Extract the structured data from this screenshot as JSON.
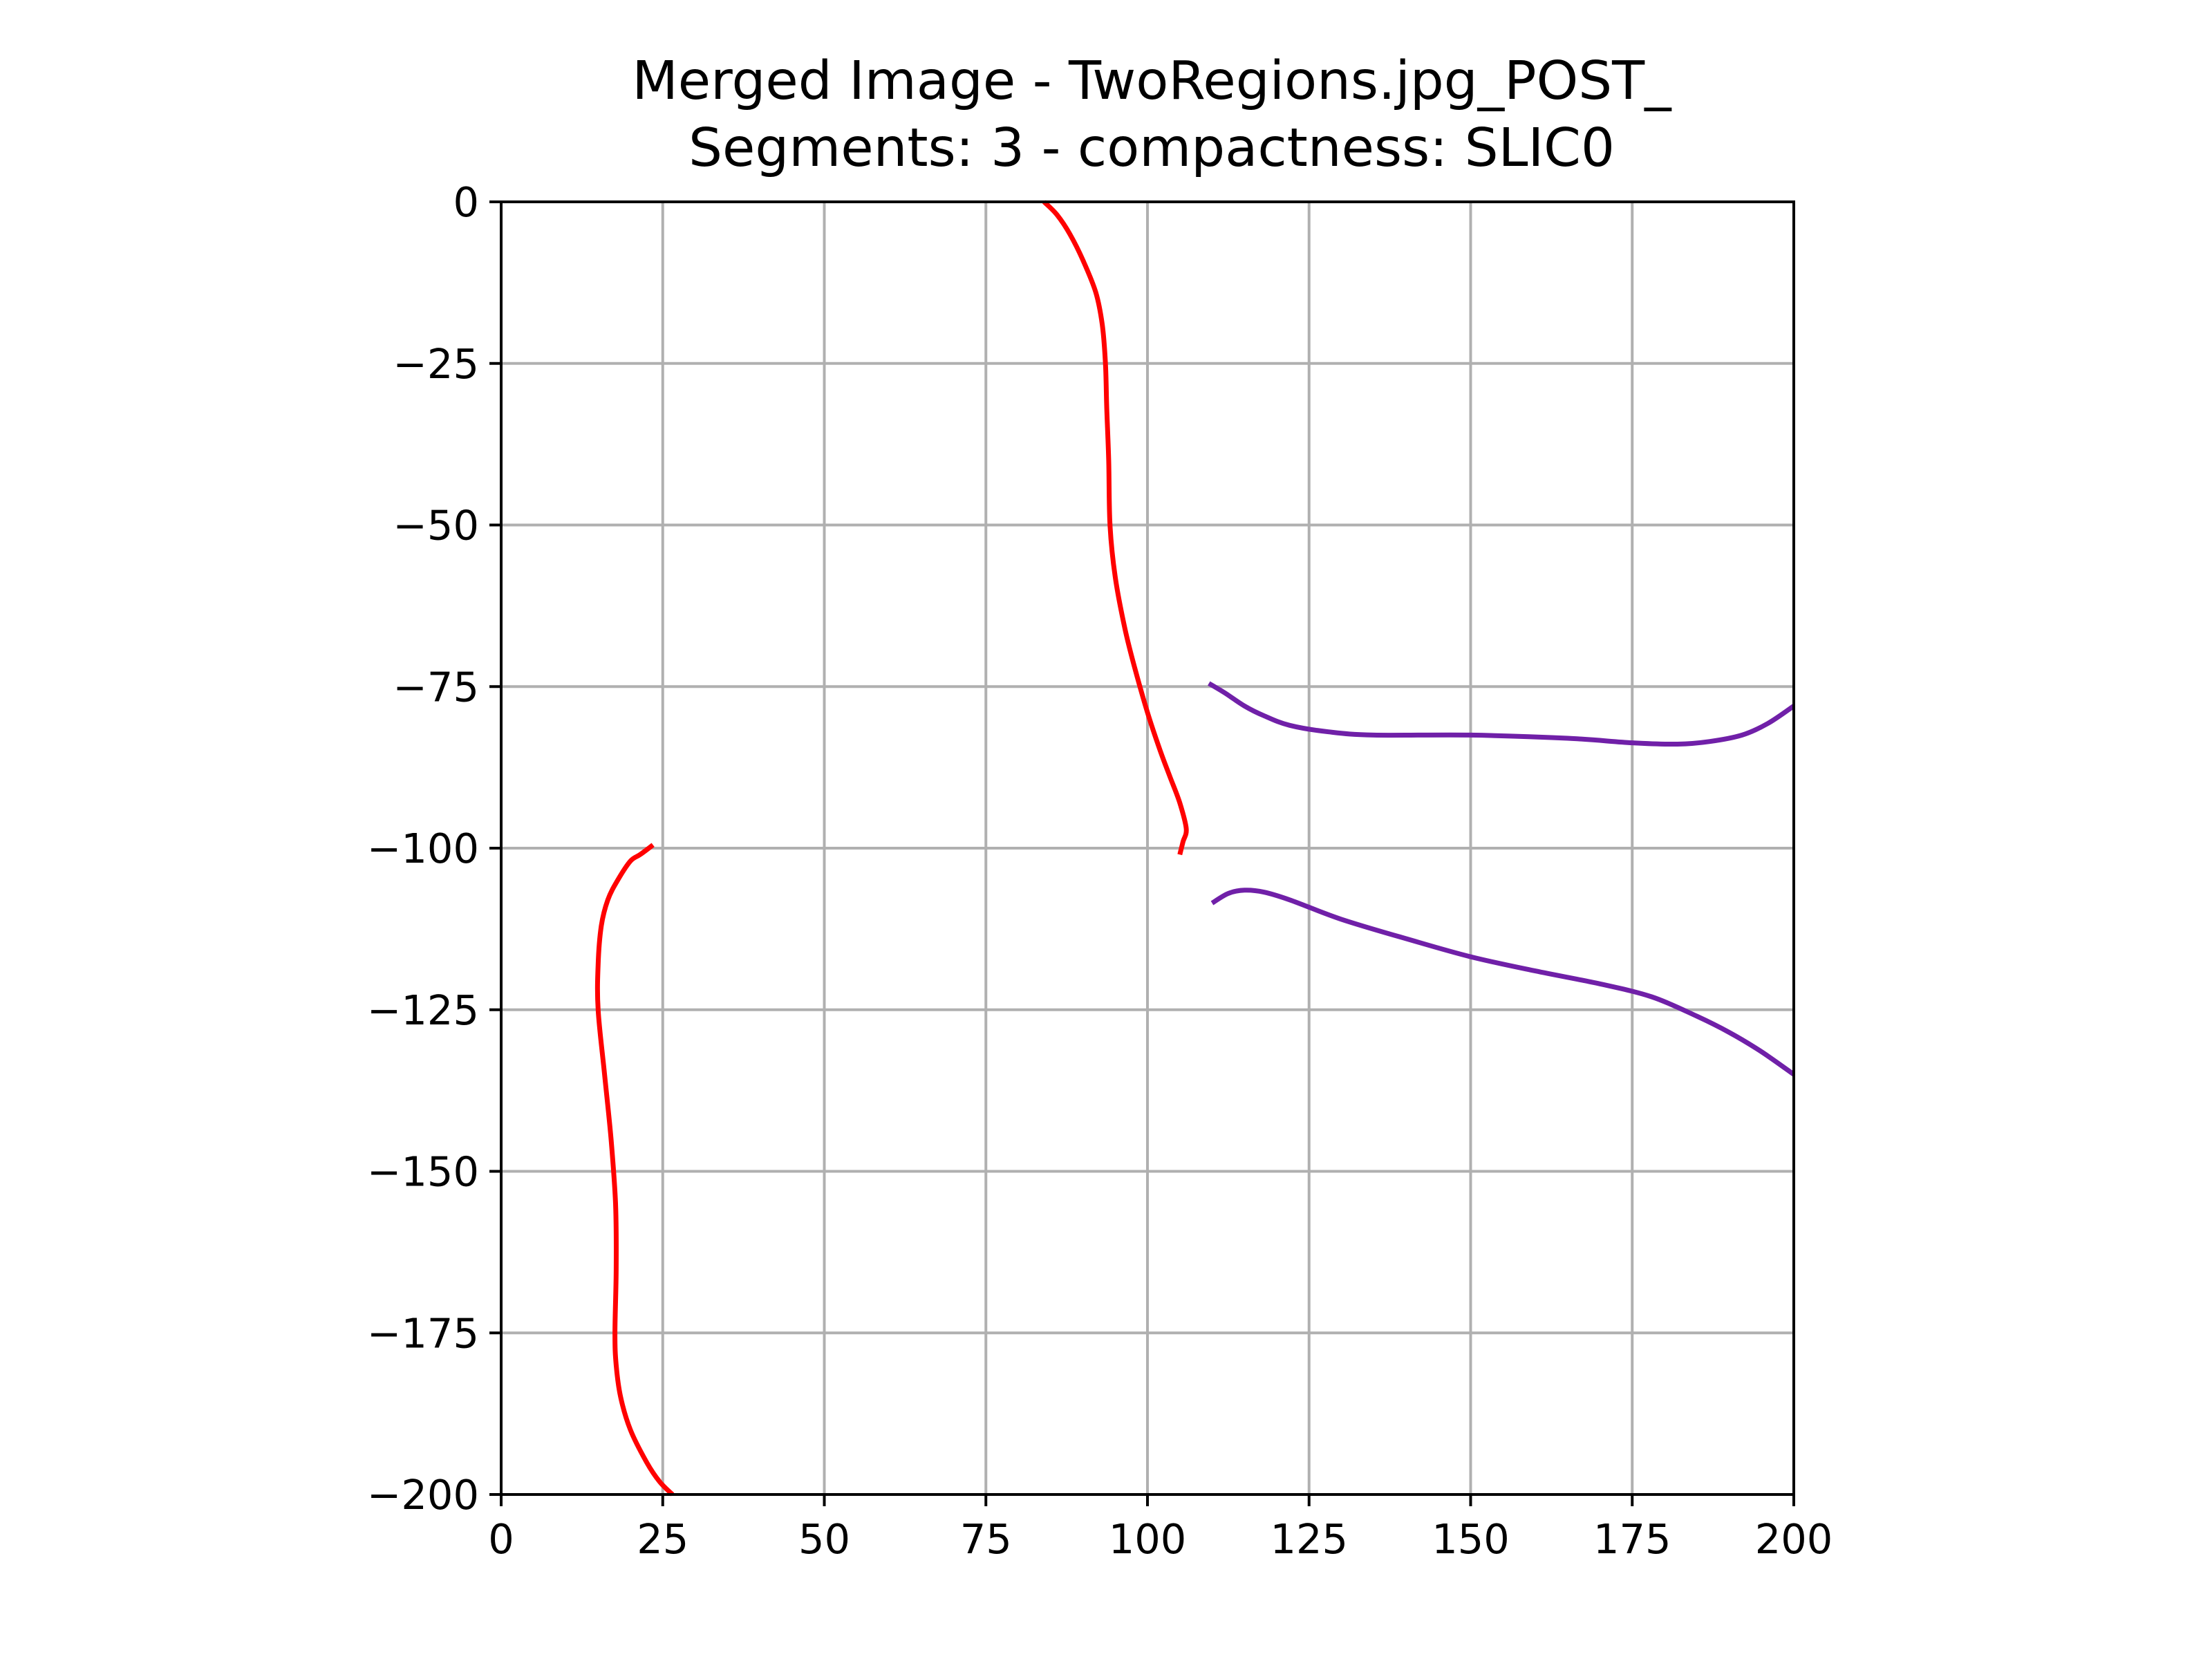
{
  "chart_data": {
    "type": "line",
    "title": "Merged Image - TwoRegions.jpg_POST_",
    "subtitle": "Segments: 3 - compactness: SLIC0",
    "xlabel": "",
    "ylabel": "",
    "xlim": [
      0,
      200
    ],
    "ylim": [
      -200,
      0
    ],
    "xticks": [
      0,
      25,
      50,
      75,
      100,
      125,
      150,
      175,
      200
    ],
    "yticks": [
      0,
      -25,
      -50,
      -75,
      -100,
      -125,
      -150,
      -175,
      -200
    ],
    "xtick_labels": [
      "0",
      "25",
      "50",
      "75",
      "100",
      "125",
      "150",
      "175",
      "200"
    ],
    "ytick_labels": [
      "0",
      "−25",
      "−50",
      "−75",
      "−100",
      "−125",
      "−150",
      "−175",
      "−200"
    ],
    "grid": true,
    "legend": "none",
    "series": [
      {
        "color": "#ff0000",
        "points": [
          [
            84,
            0
          ],
          [
            86,
            -2
          ],
          [
            88,
            -5
          ],
          [
            90,
            -9
          ],
          [
            92,
            -14
          ],
          [
            93,
            -19
          ],
          [
            93.5,
            -25
          ],
          [
            93.7,
            -32
          ],
          [
            94,
            -40
          ],
          [
            94.2,
            -50
          ],
          [
            95,
            -58
          ],
          [
            96.5,
            -66
          ],
          [
            98,
            -72
          ],
          [
            100,
            -79
          ],
          [
            102,
            -85
          ],
          [
            103.5,
            -89
          ],
          [
            105,
            -93
          ],
          [
            106,
            -97
          ],
          [
            105.5,
            -99
          ],
          [
            105,
            -101
          ]
        ]
      },
      {
        "color": "#ff0000",
        "points": [
          [
            23.5,
            -99.5
          ],
          [
            21.5,
            -101
          ],
          [
            20,
            -102
          ],
          [
            18,
            -105
          ],
          [
            16.5,
            -108
          ],
          [
            15.5,
            -112
          ],
          [
            15,
            -118
          ],
          [
            15,
            -125
          ],
          [
            16,
            -135
          ],
          [
            17,
            -145
          ],
          [
            17.7,
            -155
          ],
          [
            17.8,
            -165
          ],
          [
            17.6,
            -175
          ],
          [
            17.8,
            -180
          ],
          [
            18.5,
            -185
          ],
          [
            20,
            -190
          ],
          [
            22.5,
            -195
          ],
          [
            24.5,
            -198
          ],
          [
            26.5,
            -200
          ]
        ]
      },
      {
        "color": "#7020a8",
        "points": [
          [
            109.5,
            -74.5
          ],
          [
            112,
            -76
          ],
          [
            115,
            -78
          ],
          [
            118,
            -79.5
          ],
          [
            122,
            -81
          ],
          [
            128,
            -82
          ],
          [
            135,
            -82.5
          ],
          [
            150,
            -82.5
          ],
          [
            165,
            -83
          ],
          [
            175,
            -83.7
          ],
          [
            182,
            -83.9
          ],
          [
            187,
            -83.5
          ],
          [
            192,
            -82.5
          ],
          [
            196,
            -80.7
          ],
          [
            200,
            -78
          ]
        ]
      },
      {
        "color": "#7020a8",
        "points": [
          [
            110,
            -108.5
          ],
          [
            112.5,
            -107
          ],
          [
            115,
            -106.5
          ],
          [
            118,
            -106.8
          ],
          [
            122,
            -108
          ],
          [
            130,
            -111
          ],
          [
            140,
            -114
          ],
          [
            150,
            -116.8
          ],
          [
            160,
            -119
          ],
          [
            170,
            -121
          ],
          [
            178,
            -123
          ],
          [
            185,
            -126
          ],
          [
            190,
            -128.5
          ],
          [
            195,
            -131.5
          ],
          [
            200,
            -135
          ]
        ]
      }
    ]
  }
}
